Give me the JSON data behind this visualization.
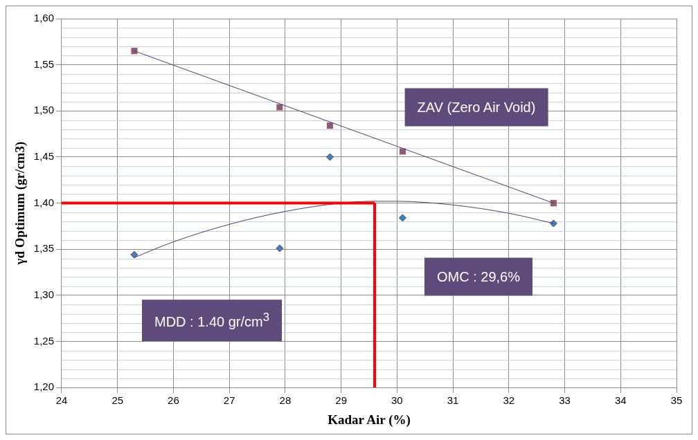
{
  "chart_data": {
    "type": "scatter",
    "xlabel": "Kadar Air (%)",
    "ylabel": "γd Optimum (gr/cm3)",
    "xlim": [
      24,
      35
    ],
    "xticks": [
      24,
      25,
      26,
      27,
      28,
      29,
      30,
      31,
      32,
      33,
      34,
      35
    ],
    "ylim": [
      1.2,
      1.6
    ],
    "yticks": [
      {
        "value": 1.2,
        "label": "1,20"
      },
      {
        "value": 1.25,
        "label": "1,25"
      },
      {
        "value": 1.3,
        "label": "1,30"
      },
      {
        "value": 1.35,
        "label": "1,35"
      },
      {
        "value": 1.4,
        "label": "1,40"
      },
      {
        "value": 1.45,
        "label": "1,45"
      },
      {
        "value": 1.5,
        "label": "1,50"
      },
      {
        "value": 1.55,
        "label": "1,55"
      },
      {
        "value": 1.6,
        "label": "1,60"
      }
    ],
    "grid": true,
    "legend": false,
    "series": [
      {
        "type": "line",
        "color": "#4b3f72",
        "marker": "none",
        "x": [
          25.3,
          32.8
        ],
        "values": [
          1.565,
          1.4
        ]
      },
      {
        "type": "line",
        "color": "#4b3f72",
        "marker": "none",
        "x": [
          25.3,
          26,
          27,
          28,
          29,
          29.6,
          30,
          31,
          32,
          32.8
        ],
        "values": [
          1.341,
          1.358,
          1.377,
          1.391,
          1.4,
          1.402,
          1.402,
          1.398,
          1.389,
          1.378
        ]
      },
      {
        "type": "scatter",
        "color": "#4f6fa8",
        "marker": "square",
        "x": [
          25.3,
          27.9,
          28.8,
          30.1,
          32.8
        ],
        "values": [
          1.565,
          1.504,
          1.484,
          1.456,
          1.4
        ]
      },
      {
        "type": "scatter",
        "color": "#4a7ebb",
        "marker": "diamond",
        "x": [
          25.3,
          27.9,
          28.8,
          30.1,
          32.8
        ],
        "values": [
          1.344,
          1.351,
          1.45,
          1.384,
          1.378
        ]
      }
    ],
    "ref_lines": [
      {
        "axis": "y",
        "value": 1.4,
        "color": "#ff0000"
      },
      {
        "axis": "x",
        "value": 29.6,
        "color": "#ff0000"
      }
    ],
    "annotations": [
      "ZAV (Zero Air Void)",
      "OMC : 29,6%",
      "MDD : 1.40 gr/cm$^{3}$"
    ]
  }
}
